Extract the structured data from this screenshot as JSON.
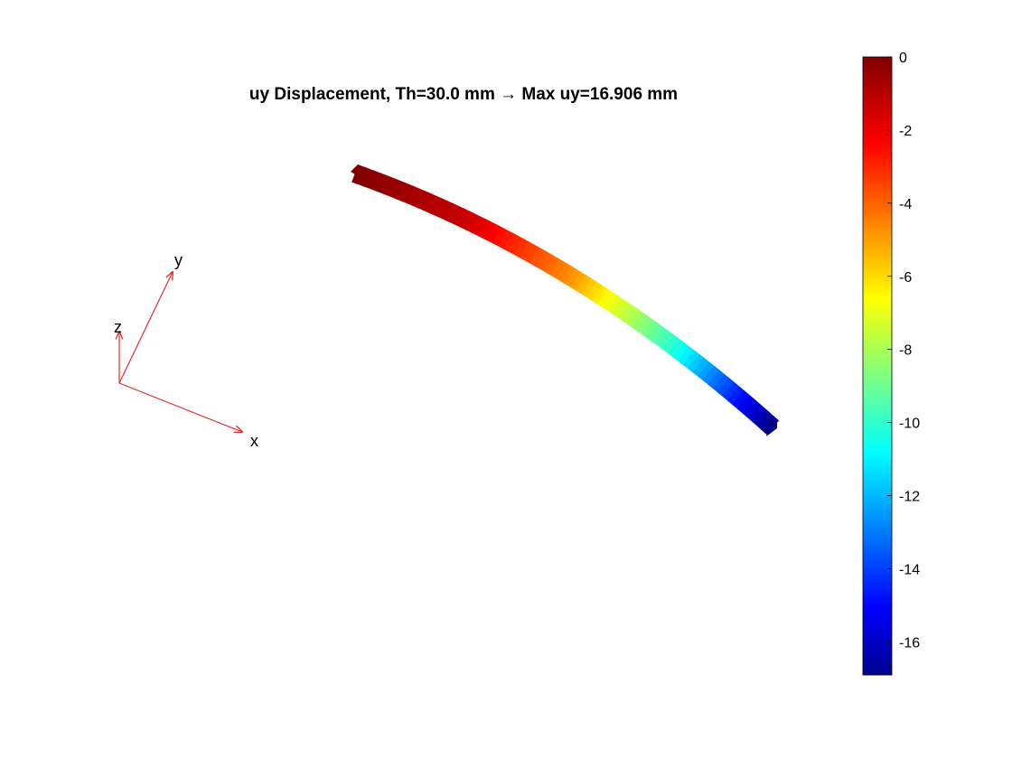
{
  "chart_data": {
    "type": "heatmap",
    "title": "uy Displacement, Th=30.0 mm → Max uy=16.906 mm",
    "colormap": "jet",
    "clim": [
      -16.906,
      0
    ],
    "colorbar": {
      "location": "right",
      "ticks": [
        0,
        -2,
        -4,
        -6,
        -8,
        -10,
        -12,
        -14,
        -16
      ],
      "tick_labels": [
        "0",
        "-2",
        "-4",
        "-6",
        "-8",
        "-10",
        "-12",
        "-14",
        "-16"
      ]
    },
    "field": {
      "description_values": "uy along beam from fixed end to free end",
      "position_fraction": [
        0,
        0.25,
        0.5,
        0.75,
        1.0
      ],
      "uy": [
        0,
        -1.2,
        -4.5,
        -9.9,
        -16.906
      ]
    },
    "triad": {
      "axes": [
        "x",
        "y",
        "z"
      ],
      "color": "#e03030"
    },
    "grid": false
  }
}
